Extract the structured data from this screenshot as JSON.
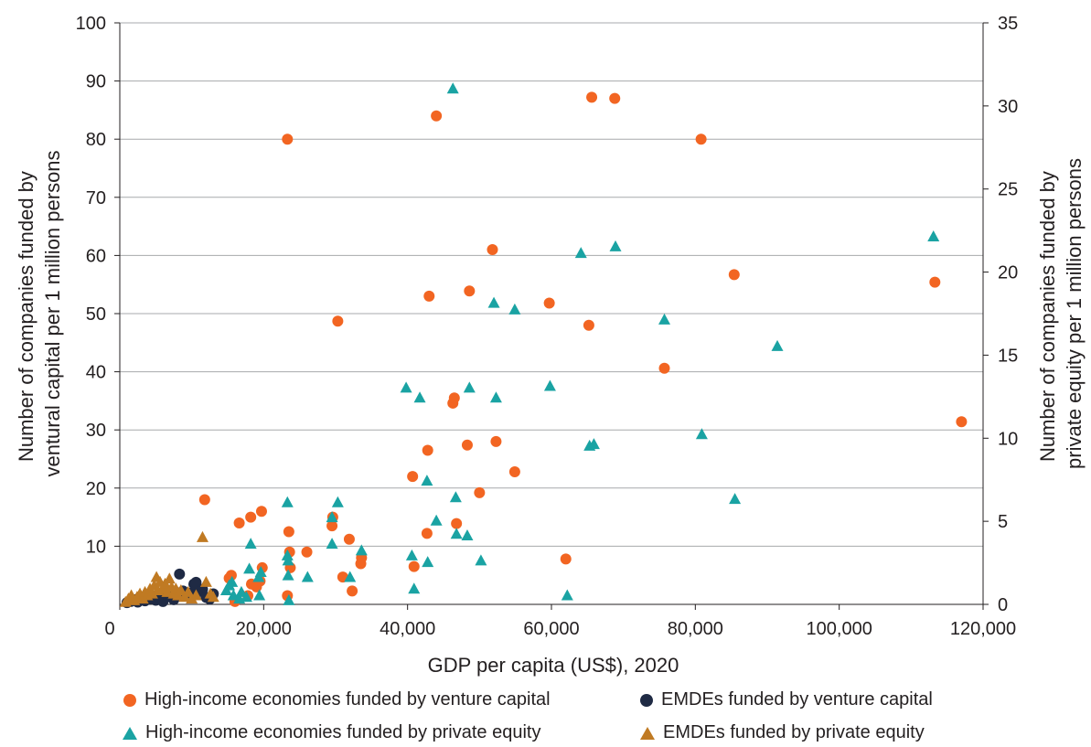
{
  "chart_data": {
    "type": "scatter",
    "xlabel": "GDP per capita (US$), 2020",
    "ylabel_left": [
      "Number of companies funded by",
      "ventural capital per 1 million persons"
    ],
    "ylabel_right": [
      "Number of companies funded by",
      "private equity per 1 million persons"
    ],
    "xlim": [
      0,
      120000
    ],
    "ylim_left": [
      0,
      100
    ],
    "ylim_right": [
      0,
      35
    ],
    "x_ticks": [
      "0",
      "20,000",
      "40,000",
      "60,000",
      "80,000",
      "100,000",
      "120,000"
    ],
    "y_left_ticks": [
      "10",
      "20",
      "30",
      "40",
      "50",
      "60",
      "70",
      "80",
      "90",
      "100"
    ],
    "y_right_ticks": [
      "0",
      "5",
      "10",
      "15",
      "20",
      "25",
      "30",
      "35"
    ],
    "grid": "horizontal",
    "legend_position": "bottom",
    "series": [
      {
        "name": "High-income economies funded by venture capital",
        "marker": "circle",
        "axis": "left",
        "color": "#f26522",
        "points": [
          [
            11800,
            18
          ],
          [
            15200,
            4.5
          ],
          [
            15500,
            5
          ],
          [
            16000,
            0.5
          ],
          [
            16600,
            14
          ],
          [
            17800,
            1.5
          ],
          [
            18200,
            15
          ],
          [
            18300,
            3.5
          ],
          [
            19000,
            3
          ],
          [
            19500,
            4
          ],
          [
            19700,
            16
          ],
          [
            19800,
            6.3
          ],
          [
            23300,
            80
          ],
          [
            23300,
            1.5
          ],
          [
            23500,
            12.5
          ],
          [
            23600,
            9
          ],
          [
            23700,
            6.3
          ],
          [
            26000,
            9
          ],
          [
            29500,
            13.5
          ],
          [
            29600,
            15
          ],
          [
            30300,
            48.7
          ],
          [
            31000,
            4.7
          ],
          [
            31900,
            11.2
          ],
          [
            32300,
            2.3
          ],
          [
            33500,
            7
          ],
          [
            33600,
            8
          ],
          [
            40700,
            22
          ],
          [
            40900,
            6.5
          ],
          [
            42700,
            12.2
          ],
          [
            42800,
            26.5
          ],
          [
            43000,
            53
          ],
          [
            44000,
            84
          ],
          [
            46300,
            34.6
          ],
          [
            46500,
            35.5
          ],
          [
            46800,
            13.9
          ],
          [
            48300,
            27.4
          ],
          [
            48600,
            53.9
          ],
          [
            50000,
            19.2
          ],
          [
            51800,
            61
          ],
          [
            52300,
            28
          ],
          [
            54900,
            22.8
          ],
          [
            59700,
            51.8
          ],
          [
            62000,
            7.8
          ],
          [
            65200,
            48
          ],
          [
            65600,
            87.2
          ],
          [
            68800,
            87
          ],
          [
            75700,
            40.6
          ],
          [
            80800,
            80
          ],
          [
            85400,
            56.7
          ],
          [
            113300,
            55.4
          ],
          [
            117000,
            31.4
          ]
        ]
      },
      {
        "name": "EMDEs funded by venture capital",
        "marker": "circle",
        "axis": "left",
        "color": "#1f2a44",
        "points": [
          [
            1000,
            0.3
          ],
          [
            1500,
            0.5
          ],
          [
            2000,
            0.8
          ],
          [
            2500,
            0.4
          ],
          [
            3000,
            1.2
          ],
          [
            3500,
            0.6
          ],
          [
            4000,
            0.9
          ],
          [
            4500,
            1.5
          ],
          [
            5000,
            0.7
          ],
          [
            5500,
            1.1
          ],
          [
            6000,
            0.5
          ],
          [
            6500,
            1.8
          ],
          [
            7000,
            1.3
          ],
          [
            7500,
            0.8
          ],
          [
            8000,
            1.6
          ],
          [
            8300,
            5.2
          ],
          [
            8800,
            2.3
          ],
          [
            9300,
            1.4
          ],
          [
            9800,
            1.9
          ],
          [
            10300,
            3.5
          ],
          [
            10600,
            3.8
          ],
          [
            11000,
            2.2
          ],
          [
            11500,
            2.6
          ],
          [
            12000,
            1.2
          ],
          [
            12500,
            0.9
          ],
          [
            13000,
            1.8
          ]
        ]
      },
      {
        "name": "High-income economies funded by private equity",
        "marker": "triangle",
        "axis": "right",
        "color": "#1aa3a3",
        "points": [
          [
            14800,
            0.8
          ],
          [
            15200,
            1.1
          ],
          [
            15600,
            1.3
          ],
          [
            15800,
            0.5
          ],
          [
            16600,
            0.3
          ],
          [
            16900,
            0.7
          ],
          [
            17600,
            0.4
          ],
          [
            18000,
            2.1
          ],
          [
            18200,
            3.6
          ],
          [
            19300,
            1.6
          ],
          [
            19400,
            0.5
          ],
          [
            19600,
            1.9
          ],
          [
            23300,
            6.1
          ],
          [
            23300,
            2.9
          ],
          [
            23400,
            2.6
          ],
          [
            23400,
            1.7
          ],
          [
            23500,
            0.2
          ],
          [
            26100,
            1.6
          ],
          [
            29500,
            3.6
          ],
          [
            29500,
            5.2
          ],
          [
            30300,
            6.1
          ],
          [
            32000,
            1.6
          ],
          [
            33600,
            3.2
          ],
          [
            39800,
            13
          ],
          [
            40600,
            2.9
          ],
          [
            40900,
            0.9
          ],
          [
            41700,
            12.4
          ],
          [
            42700,
            7.4
          ],
          [
            42800,
            2.5
          ],
          [
            44000,
            5
          ],
          [
            46300,
            31
          ],
          [
            46700,
            6.4
          ],
          [
            46800,
            4.2
          ],
          [
            48300,
            4.1
          ],
          [
            48600,
            13
          ],
          [
            50200,
            2.6
          ],
          [
            52000,
            18.1
          ],
          [
            52300,
            12.4
          ],
          [
            54900,
            17.7
          ],
          [
            59800,
            13.1
          ],
          [
            62200,
            0.5
          ],
          [
            64100,
            21.1
          ],
          [
            65300,
            9.5
          ],
          [
            65900,
            9.6
          ],
          [
            68900,
            21.5
          ],
          [
            75700,
            17.1
          ],
          [
            80900,
            10.2
          ],
          [
            85500,
            6.3
          ],
          [
            91400,
            15.5
          ],
          [
            113100,
            22.1
          ]
        ]
      },
      {
        "name": "EMDEs funded by private equity",
        "marker": "triangle",
        "axis": "right",
        "color": "#c07a23",
        "points": [
          [
            800,
            0.1
          ],
          [
            1200,
            0.3
          ],
          [
            1600,
            0.5
          ],
          [
            2000,
            0.2
          ],
          [
            2400,
            0.4
          ],
          [
            2800,
            0.6
          ],
          [
            3200,
            0.3
          ],
          [
            3500,
            0.7
          ],
          [
            3800,
            0.5
          ],
          [
            4200,
            0.9
          ],
          [
            4500,
            0.6
          ],
          [
            4800,
            1.1
          ],
          [
            5100,
            1.6
          ],
          [
            5300,
            0.8
          ],
          [
            5600,
            1.3
          ],
          [
            6000,
            0.9
          ],
          [
            6300,
            1.2
          ],
          [
            6600,
            0.7
          ],
          [
            6900,
            1.5
          ],
          [
            7200,
            1
          ],
          [
            7500,
            0.6
          ],
          [
            7800,
            0.9
          ],
          [
            8100,
            0.5
          ],
          [
            8500,
            0.8
          ],
          [
            9000,
            0.4
          ],
          [
            9500,
            0.7
          ],
          [
            10000,
            0.3
          ],
          [
            10600,
            0.5
          ],
          [
            11500,
            4
          ],
          [
            12000,
            1.3
          ],
          [
            12600,
            0.6
          ],
          [
            13000,
            0.4
          ]
        ]
      }
    ]
  }
}
